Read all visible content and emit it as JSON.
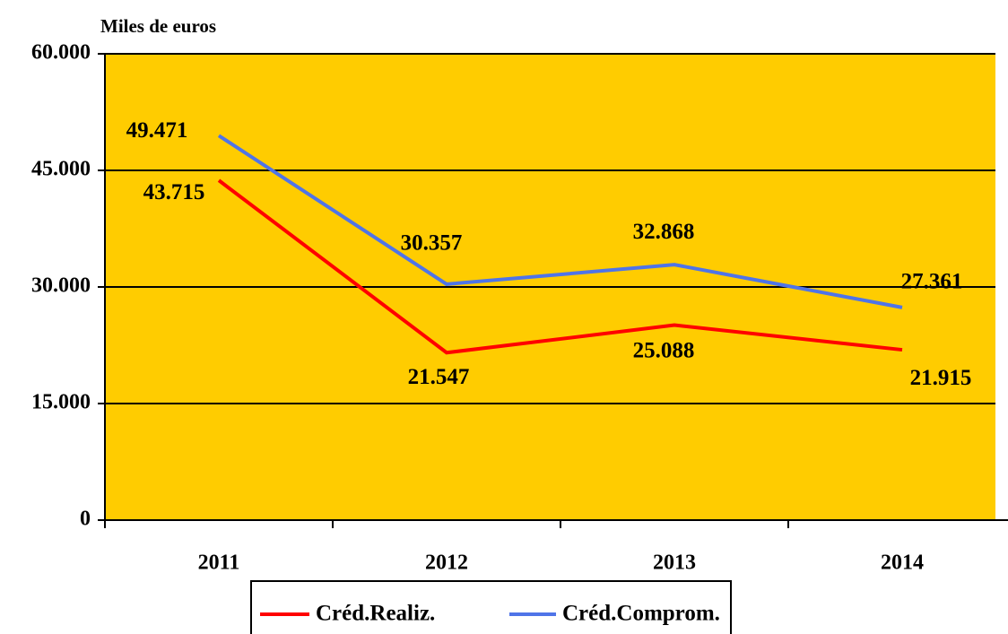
{
  "chart_data": {
    "type": "line",
    "y_axis_label": "Miles de euros",
    "categories": [
      "2011",
      "2012",
      "2013",
      "2014"
    ],
    "series": [
      {
        "name": "Créd.Realiz.",
        "color": "#ff0000",
        "values": [
          43715,
          21547,
          25088,
          21915
        ],
        "value_labels": [
          "43.715",
          "21.547",
          "25.088",
          "21.915"
        ]
      },
      {
        "name": "Créd.Comprom.",
        "color": "#4f74e8",
        "values": [
          49471,
          30357,
          32868,
          27361
        ],
        "value_labels": [
          "49.471",
          "30.357",
          "32.868",
          "27.361"
        ]
      }
    ],
    "ylim": [
      0,
      60000
    ],
    "yticks": [
      0,
      {
        "value": 15000,
        "label": "15.000"
      },
      {
        "value": 30000,
        "label": "30.000"
      },
      {
        "value": 45000,
        "label": "45.000"
      },
      {
        "value": 60000,
        "label": "60.000"
      }
    ],
    "grid": true,
    "plot_background": "#ffcc00",
    "legend": "bottom"
  }
}
